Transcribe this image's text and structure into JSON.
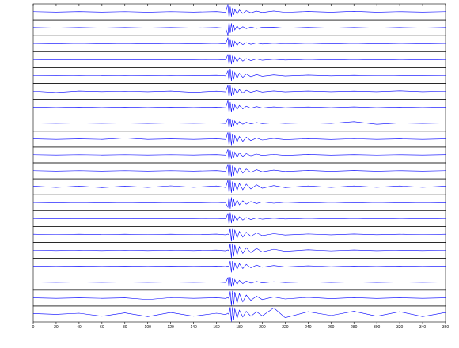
{
  "chart_data": {
    "type": "line",
    "color": "#0000ff",
    "x": [
      0,
      20,
      40,
      60,
      80,
      100,
      120,
      140,
      160,
      168,
      170,
      171,
      172,
      173,
      174,
      175,
      176,
      178,
      180,
      183,
      186,
      190,
      195,
      200,
      210,
      220,
      240,
      260,
      280,
      300,
      320,
      340,
      360
    ],
    "xlim": [
      0,
      360
    ],
    "xticks": [
      0,
      20,
      40,
      60,
      80,
      100,
      120,
      140,
      160,
      180,
      200,
      220,
      240,
      260,
      280,
      300,
      320,
      340,
      360
    ],
    "ylim": [
      -1,
      1
    ],
    "series": [
      {
        "values": [
          0.03,
          -0.03,
          0.04,
          -0.03,
          0.03,
          -0.04,
          0.03,
          -0.03,
          0.04,
          -0.05,
          1,
          -0.9,
          0.7,
          -0.6,
          0.5,
          -0.4,
          0.35,
          -0.3,
          0.25,
          -0.2,
          0.15,
          -0.12,
          0.1,
          -0.08,
          0.12,
          -0.06,
          0.05,
          -0.04,
          0.08,
          -0.04,
          0.03,
          -0.03,
          0.03
        ]
      },
      {
        "values": [
          0.03,
          -0.03,
          0.03,
          -0.03,
          0.03,
          -0.03,
          0.03,
          -0.03,
          0.03,
          -0.05,
          -1,
          0.9,
          -0.7,
          0.6,
          -0.5,
          0.4,
          -0.3,
          0.25,
          -0.2,
          0.15,
          -0.12,
          0.1,
          -0.08,
          0.06,
          0.07,
          -0.05,
          0.05,
          -0.04,
          0.04,
          -0.04,
          0.03,
          -0.03,
          0.03
        ]
      },
      {
        "values": [
          0.02,
          -0.02,
          0.03,
          -0.02,
          0.02,
          -0.03,
          0.02,
          -0.02,
          0.03,
          -0.04,
          0.8,
          -0.9,
          0.6,
          -0.5,
          0.4,
          -0.35,
          0.3,
          -0.25,
          0.2,
          -0.15,
          0.12,
          -0.1,
          0.08,
          -0.06,
          0.05,
          -0.04,
          0.04,
          -0.03,
          0.03,
          -0.03,
          0.02,
          -0.02,
          0.02
        ]
      },
      {
        "values": [
          0.02,
          -0.02,
          0.02,
          -0.02,
          0.02,
          -0.02,
          0.02,
          -0.02,
          0.03,
          -0.04,
          0.7,
          -0.8,
          0.7,
          -0.6,
          0.5,
          -0.4,
          0.35,
          -0.3,
          0.25,
          -0.2,
          0.15,
          -0.12,
          0.1,
          -0.08,
          0.06,
          -0.05,
          0.04,
          -0.03,
          0.03,
          -0.03,
          0.02,
          -0.02,
          0.02
        ]
      },
      {
        "values": [
          0.02,
          -0.02,
          0.02,
          -0.02,
          0.02,
          -0.02,
          0.02,
          -0.02,
          0.03,
          -0.04,
          0.6,
          -0.8,
          0.9,
          -0.7,
          0.6,
          -0.5,
          0.4,
          -0.35,
          0.3,
          -0.25,
          0.2,
          -0.15,
          0.12,
          -0.1,
          0.08,
          -0.06,
          0.05,
          -0.04,
          0.03,
          -0.03,
          0.02,
          -0.02,
          0.02
        ]
      },
      {
        "values": [
          0.03,
          -0.15,
          0.05,
          -0.03,
          0.03,
          -0.04,
          0.05,
          -0.12,
          0.04,
          -0.05,
          0.8,
          -0.9,
          0.8,
          -0.6,
          0.5,
          -0.45,
          0.4,
          -0.3,
          0.25,
          -0.2,
          0.15,
          -0.12,
          0.1,
          -0.08,
          0.06,
          -0.05,
          0.05,
          -0.04,
          0.04,
          -0.04,
          0.08,
          -0.04,
          0.03
        ]
      },
      {
        "values": [
          0.03,
          -0.03,
          0.03,
          -0.03,
          0.03,
          -0.03,
          0.03,
          -0.03,
          0.04,
          -0.05,
          0.9,
          -0.8,
          0.7,
          -0.6,
          0.5,
          -0.4,
          0.35,
          -0.3,
          0.25,
          -0.2,
          0.15,
          -0.12,
          0.1,
          -0.08,
          0.06,
          -0.05,
          0.05,
          -0.04,
          0.06,
          -0.04,
          0.03,
          -0.03,
          0.03
        ]
      },
      {
        "values": [
          0.02,
          -0.02,
          0.02,
          -0.02,
          0.02,
          -0.03,
          0.02,
          -0.02,
          0.03,
          -0.04,
          0.6,
          -0.7,
          0.6,
          -0.5,
          0.4,
          -0.35,
          0.3,
          -0.25,
          0.2,
          -0.15,
          0.12,
          -0.1,
          0.08,
          -0.06,
          0.05,
          -0.04,
          0.04,
          -0.03,
          0.2,
          -0.15,
          0.03,
          -0.03,
          0.02
        ]
      },
      {
        "values": [
          0.03,
          -0.03,
          0.03,
          -0.03,
          0.15,
          -0.04,
          0.03,
          -0.03,
          0.04,
          -0.05,
          0.9,
          -1,
          0.9,
          -0.8,
          0.7,
          -0.6,
          0.5,
          -0.4,
          0.35,
          -0.3,
          0.25,
          -0.2,
          0.15,
          -0.12,
          0.1,
          -0.08,
          0.06,
          -0.05,
          0.05,
          -0.04,
          0.03,
          -0.03,
          0.03
        ]
      },
      {
        "values": [
          0.02,
          -0.02,
          0.02,
          -0.02,
          0.02,
          -0.02,
          0.02,
          -0.02,
          0.03,
          -0.04,
          0.7,
          -0.8,
          0.6,
          -0.5,
          0.45,
          -0.4,
          0.35,
          -0.3,
          0.25,
          -0.2,
          0.15,
          -0.12,
          0.1,
          -0.08,
          0.06,
          -0.08,
          0.05,
          -0.04,
          0.03,
          -0.03,
          0.02,
          -0.02,
          0.03
        ]
      },
      {
        "values": [
          0.03,
          -0.03,
          0.03,
          -0.03,
          0.03,
          -0.03,
          0.03,
          -0.03,
          0.04,
          -0.05,
          0.9,
          -1,
          0.9,
          -0.8,
          0.7,
          -0.6,
          0.5,
          -0.45,
          0.4,
          -0.3,
          0.25,
          -0.2,
          0.15,
          -0.12,
          0.1,
          -0.08,
          0.06,
          -0.05,
          0.05,
          -0.04,
          0.03,
          -0.03,
          0.03
        ]
      },
      {
        "values": [
          0.08,
          -0.1,
          0.08,
          -0.12,
          0.08,
          -0.1,
          0.12,
          -0.08,
          0.1,
          -0.1,
          0.9,
          -1,
          0.9,
          -0.8,
          0.7,
          -0.6,
          0.55,
          -0.5,
          0.45,
          -0.4,
          0.35,
          -0.3,
          0.25,
          -0.2,
          0.15,
          -0.12,
          0.1,
          -0.1,
          0.1,
          -0.08,
          0.1,
          -0.08,
          0.08
        ]
      },
      {
        "values": [
          0.02,
          -0.02,
          0.02,
          -0.02,
          0.02,
          -0.02,
          0.02,
          -0.02,
          0.03,
          -0.04,
          -0.6,
          0.9,
          -0.8,
          0.7,
          -0.6,
          0.5,
          -0.4,
          0.35,
          -0.3,
          0.25,
          -0.2,
          0.15,
          -0.12,
          0.1,
          -0.08,
          0.06,
          -0.05,
          0.04,
          -0.03,
          0.03,
          -0.02,
          0.02,
          -0.02
        ]
      },
      {
        "values": [
          0.02,
          -0.02,
          0.02,
          -0.02,
          0.02,
          -0.02,
          0.02,
          -0.02,
          0.03,
          -0.04,
          0.7,
          -0.9,
          0.8,
          -0.6,
          0.5,
          -0.4,
          0.35,
          -0.3,
          0.25,
          -0.2,
          0.15,
          -0.12,
          0.1,
          -0.08,
          0.06,
          -0.05,
          0.04,
          -0.03,
          0.03,
          -0.03,
          0.02,
          -0.02,
          0.02
        ]
      },
      {
        "values": [
          0.03,
          -0.03,
          0.03,
          -0.03,
          0.03,
          -0.03,
          0.03,
          -0.03,
          0.04,
          -0.05,
          0.05,
          -0.06,
          0.8,
          -0.9,
          0.8,
          -0.7,
          0.6,
          -0.5,
          0.4,
          -0.35,
          0.3,
          -0.25,
          0.2,
          -0.15,
          0.1,
          -0.08,
          0.06,
          -0.05,
          0.05,
          -0.04,
          0.03,
          -0.03,
          0.03
        ]
      },
      {
        "values": [
          0.03,
          -0.03,
          0.03,
          -0.03,
          0.03,
          -0.03,
          0.03,
          -0.03,
          0.04,
          -0.05,
          0.06,
          -0.08,
          0.9,
          -1,
          0.9,
          -0.8,
          0.7,
          -0.6,
          0.5,
          -0.4,
          0.35,
          -0.3,
          0.25,
          -0.2,
          0.15,
          -0.12,
          0.08,
          -0.06,
          0.05,
          -0.04,
          0.03,
          -0.03,
          0.03
        ]
      },
      {
        "values": [
          0.02,
          -0.02,
          0.02,
          -0.02,
          0.02,
          -0.02,
          0.02,
          -0.02,
          0.03,
          -0.04,
          0.05,
          -0.05,
          0.7,
          -0.8,
          0.7,
          -0.6,
          0.5,
          -0.4,
          0.35,
          -0.3,
          0.25,
          -0.2,
          0.15,
          -0.12,
          0.1,
          -0.08,
          0.06,
          -0.05,
          0.04,
          -0.03,
          0.03,
          -0.02,
          0.02
        ]
      },
      {
        "values": [
          0.02,
          -0.02,
          0.02,
          -0.02,
          0.02,
          -0.02,
          0.02,
          -0.02,
          0.03,
          -0.04,
          0.6,
          -0.8,
          0.7,
          -0.6,
          0.5,
          -0.4,
          0.35,
          -0.3,
          0.25,
          -0.2,
          0.15,
          -0.12,
          0.1,
          -0.08,
          0.06,
          -0.05,
          0.04,
          -0.03,
          0.03,
          -0.03,
          0.02,
          -0.02,
          0.02
        ]
      },
      {
        "values": [
          0.03,
          -0.03,
          0.03,
          -0.03,
          0.03,
          -0.2,
          0.05,
          -0.03,
          0.04,
          -0.05,
          0.06,
          -0.08,
          0.9,
          -1,
          0.95,
          -0.9,
          0.8,
          -0.7,
          0.6,
          -0.5,
          0.4,
          -0.3,
          0.25,
          -0.2,
          0.15,
          -0.12,
          0.1,
          -0.08,
          0.06,
          -0.05,
          0.04,
          -0.03,
          0.03
        ]
      },
      {
        "values": [
          0.05,
          -0.05,
          0.1,
          -0.3,
          0.15,
          -0.35,
          0.2,
          -0.3,
          0.1,
          -0.08,
          0.1,
          -0.1,
          0.9,
          -1,
          0.9,
          -0.8,
          0.7,
          -0.6,
          0.5,
          -0.4,
          0.35,
          -0.3,
          0.3,
          -0.25,
          0.8,
          -0.5,
          0.3,
          -0.2,
          0.35,
          -0.3,
          0.3,
          -0.35,
          0.2
        ]
      }
    ]
  }
}
